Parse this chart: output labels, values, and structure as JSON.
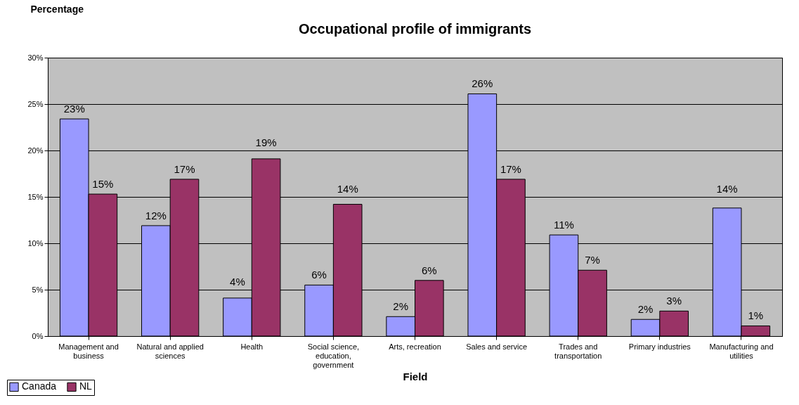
{
  "chart_data": {
    "type": "bar",
    "title": "Occupational profile of immigrants",
    "xlabel": "Field",
    "ylabel": "Percentage",
    "categories": [
      "Management and business",
      "Natural and applied sciences",
      "Health",
      "Social science, education, government",
      "Arts, recreation",
      "Sales and service",
      "Trades and transportation",
      "Primary industries",
      "Manufacturing and utilities"
    ],
    "series": [
      {
        "name": "Canada",
        "color": "#9999ff",
        "values": [
          23.4,
          11.9,
          4.1,
          5.5,
          2.1,
          26.1,
          10.9,
          1.8,
          13.8
        ],
        "value_labels": [
          "23%",
          "12%",
          "4%",
          "6%",
          "2%",
          "26%",
          "11%",
          "2%",
          "14%"
        ]
      },
      {
        "name": "NL",
        "color": "#993366",
        "values": [
          15.3,
          16.9,
          19.1,
          14.2,
          6.0,
          16.9,
          7.1,
          2.7,
          1.1
        ],
        "value_labels": [
          "15%",
          "17%",
          "19%",
          "14%",
          "6%",
          "17%",
          "7%",
          "3%",
          "1%"
        ]
      }
    ],
    "ylim": [
      0,
      30
    ],
    "yticks": [
      {
        "value": 0,
        "label": "0%"
      },
      {
        "value": 5,
        "label": "5%"
      },
      {
        "value": 10,
        "label": "10%"
      },
      {
        "value": 15,
        "label": "15%"
      },
      {
        "value": 20,
        "label": "20%"
      },
      {
        "value": 25,
        "label": "25%"
      },
      {
        "value": 30,
        "label": "30%"
      }
    ],
    "grid": "y",
    "legend": "bottom left"
  }
}
